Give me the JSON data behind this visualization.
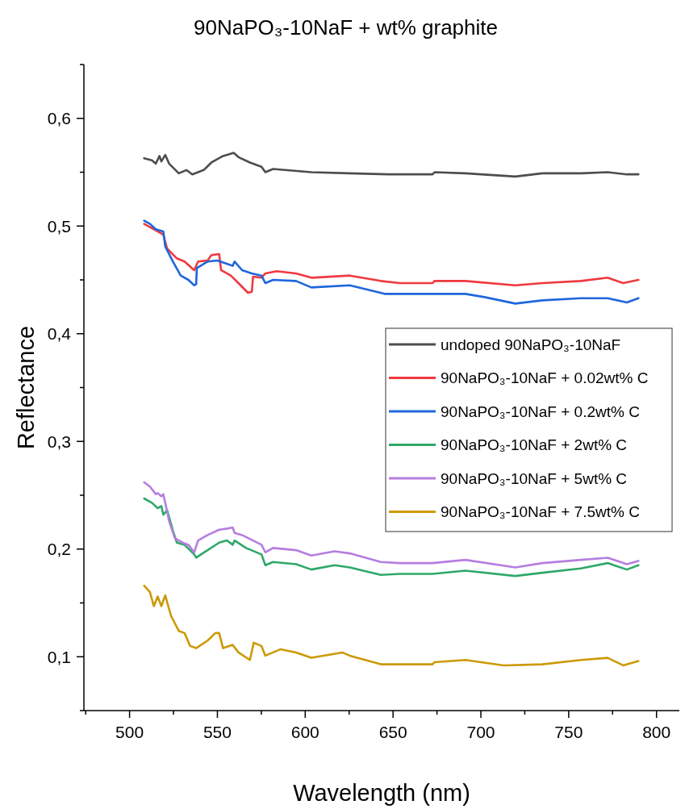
{
  "chart_data": {
    "type": "line",
    "title": "90NaPO₃-10NaF + wt% graphite",
    "xlabel": "Wavelength (nm)",
    "ylabel": "Reflectance",
    "xlim": [
      474,
      813
    ],
    "ylim": [
      0.05,
      0.65
    ],
    "xticks": [
      {
        "value": 475,
        "label": null
      },
      500,
      {
        "value": 525,
        "label": null
      },
      550,
      {
        "value": 575,
        "label": null
      },
      600,
      {
        "value": 625,
        "label": null
      },
      650,
      {
        "value": 675,
        "label": null
      },
      700,
      {
        "value": 725,
        "label": null
      },
      750,
      {
        "value": 775,
        "label": null
      },
      800
    ],
    "yticks": [
      {
        "value": 0.05,
        "label": null
      },
      {
        "value": 0.1,
        "label": "0,1"
      },
      {
        "value": 0.15,
        "label": null
      },
      {
        "value": 0.2,
        "label": "0,2"
      },
      {
        "value": 0.25,
        "label": null
      },
      {
        "value": 0.3,
        "label": "0,3"
      },
      {
        "value": 0.35,
        "label": null
      },
      {
        "value": 0.4,
        "label": "0,4"
      },
      {
        "value": 0.45,
        "label": null
      },
      {
        "value": 0.5,
        "label": "0,5"
      },
      {
        "value": 0.55,
        "label": null
      },
      {
        "value": 0.6,
        "label": "0,6"
      },
      {
        "value": 0.65,
        "label": null
      }
    ],
    "grid": false,
    "legend": "right",
    "marker": "none",
    "line_style": "solid",
    "series": [
      {
        "name": "undoped 90NaPO₃-10NaF",
        "color": "#4d4d4d",
        "x": [
          508.3,
          512.7,
          514.9,
          517.0,
          518.1,
          520.3,
          522.5,
          528.0,
          532.4,
          535.7,
          542.2,
          546.6,
          553.2,
          559.3,
          562.0,
          568.5,
          575.1,
          577.3,
          581.7,
          603.5,
          625.4,
          647.3,
          672.5,
          673.6,
          691.2,
          719.6,
          735.0,
          756.9,
          772.2,
          783.1,
          789.7
        ],
        "values": [
          0.563,
          0.561,
          0.558,
          0.565,
          0.56,
          0.566,
          0.558,
          0.549,
          0.552,
          0.548,
          0.552,
          0.559,
          0.565,
          0.568,
          0.564,
          0.559,
          0.555,
          0.55,
          0.553,
          0.55,
          0.549,
          0.548,
          0.548,
          0.55,
          0.549,
          0.546,
          0.549,
          0.549,
          0.55,
          0.548,
          0.548
        ]
      },
      {
        "name": "90NaPO₃-10NaF + 0.02wt% C",
        "color": "#f0393f",
        "x": [
          508.3,
          511.6,
          516.0,
          519.2,
          521.4,
          526.9,
          531.3,
          536.8,
          539.0,
          544.4,
          546.6,
          551.0,
          552.1,
          557.6,
          562.0,
          567.4,
          569.6,
          570.3,
          575.1,
          577.3,
          583.8,
          594.8,
          603.5,
          625.4,
          643.0,
          653.9,
          672.5,
          673.6,
          691.2,
          719.6,
          735.0,
          756.9,
          772.2,
          781.0,
          789.7
        ],
        "values": [
          0.502,
          0.499,
          0.495,
          0.492,
          0.479,
          0.47,
          0.467,
          0.459,
          0.467,
          0.468,
          0.473,
          0.474,
          0.459,
          0.454,
          0.447,
          0.438,
          0.439,
          0.453,
          0.452,
          0.456,
          0.458,
          0.456,
          0.452,
          0.454,
          0.449,
          0.447,
          0.447,
          0.449,
          0.449,
          0.445,
          0.447,
          0.449,
          0.452,
          0.447,
          0.45
        ]
      },
      {
        "name": "90NaPO₃-10NaF + 0.2wt% C",
        "color": "#1f66dd",
        "x": [
          508.3,
          511.6,
          514.9,
          519.2,
          520.3,
          524.7,
          529.1,
          533.5,
          536.8,
          537.9,
          538.3,
          544.4,
          549.9,
          555.4,
          558.7,
          559.8,
          564.1,
          569.6,
          575.1,
          577.3,
          581.7,
          594.8,
          603.5,
          625.4,
          645.2,
          653.9,
          672.5,
          691.2,
          702.1,
          719.6,
          735.0,
          756.9,
          772.2,
          783.1,
          789.7
        ],
        "values": [
          0.505,
          0.502,
          0.497,
          0.495,
          0.481,
          0.467,
          0.454,
          0.45,
          0.445,
          0.446,
          0.461,
          0.467,
          0.468,
          0.465,
          0.463,
          0.467,
          0.459,
          0.456,
          0.454,
          0.447,
          0.45,
          0.449,
          0.443,
          0.445,
          0.437,
          0.437,
          0.437,
          0.437,
          0.434,
          0.428,
          0.431,
          0.433,
          0.433,
          0.429,
          0.433
        ]
      },
      {
        "name": "90NaPO₃-10NaF + 2wt% C",
        "color": "#2ea86a",
        "x": [
          508.3,
          512.7,
          516.0,
          518.1,
          519.2,
          521.4,
          524.7,
          526.9,
          531.3,
          536.8,
          537.9,
          544.4,
          551.0,
          555.4,
          558.7,
          559.8,
          566.3,
          575.1,
          577.3,
          581.7,
          594.8,
          603.5,
          616.7,
          625.4,
          643.0,
          653.9,
          672.5,
          691.2,
          719.6,
          735.0,
          756.9,
          772.2,
          783.1,
          789.7
        ],
        "values": [
          0.247,
          0.243,
          0.238,
          0.24,
          0.232,
          0.236,
          0.217,
          0.206,
          0.204,
          0.195,
          0.192,
          0.199,
          0.206,
          0.208,
          0.204,
          0.208,
          0.201,
          0.195,
          0.185,
          0.188,
          0.186,
          0.181,
          0.185,
          0.183,
          0.176,
          0.177,
          0.177,
          0.18,
          0.175,
          0.178,
          0.182,
          0.187,
          0.181,
          0.185
        ]
      },
      {
        "name": "90NaPO₃-10NaF + 5wt% C",
        "color": "#b57ee0",
        "x": [
          508.3,
          511.6,
          514.9,
          516.0,
          518.1,
          519.2,
          520.3,
          522.5,
          525.8,
          530.2,
          533.5,
          536.8,
          539.0,
          544.4,
          551.0,
          555.4,
          558.7,
          559.8,
          564.1,
          575.1,
          577.3,
          581.7,
          594.8,
          603.5,
          616.7,
          625.4,
          643.0,
          653.9,
          672.5,
          691.2,
          719.6,
          735.0,
          756.9,
          772.2,
          783.1,
          789.7
        ],
        "values": [
          0.262,
          0.258,
          0.251,
          0.252,
          0.249,
          0.251,
          0.243,
          0.226,
          0.21,
          0.206,
          0.204,
          0.197,
          0.208,
          0.213,
          0.218,
          0.219,
          0.22,
          0.215,
          0.213,
          0.204,
          0.197,
          0.201,
          0.199,
          0.194,
          0.198,
          0.196,
          0.188,
          0.187,
          0.187,
          0.19,
          0.183,
          0.187,
          0.19,
          0.192,
          0.186,
          0.189
        ]
      },
      {
        "name": "90NaPO₃-10NaF + 7.5wt% C",
        "color": "#cc9a06",
        "x": [
          508.3,
          511.6,
          513.8,
          516.0,
          518.1,
          520.3,
          523.6,
          528.0,
          531.3,
          534.5,
          537.9,
          544.4,
          548.8,
          551.0,
          553.2,
          558.7,
          562.0,
          568.5,
          570.7,
          575.1,
          577.3,
          586.0,
          594.8,
          603.5,
          621.1,
          625.4,
          643.0,
          653.9,
          672.5,
          673.6,
          691.2,
          713.1,
          735.0,
          756.9,
          772.2,
          781.0,
          789.7
        ],
        "values": [
          0.166,
          0.16,
          0.147,
          0.156,
          0.147,
          0.157,
          0.138,
          0.124,
          0.122,
          0.11,
          0.108,
          0.115,
          0.122,
          0.122,
          0.108,
          0.111,
          0.104,
          0.097,
          0.113,
          0.11,
          0.101,
          0.107,
          0.104,
          0.099,
          0.104,
          0.101,
          0.093,
          0.093,
          0.093,
          0.095,
          0.097,
          0.092,
          0.093,
          0.097,
          0.099,
          0.092,
          0.096
        ]
      }
    ]
  }
}
